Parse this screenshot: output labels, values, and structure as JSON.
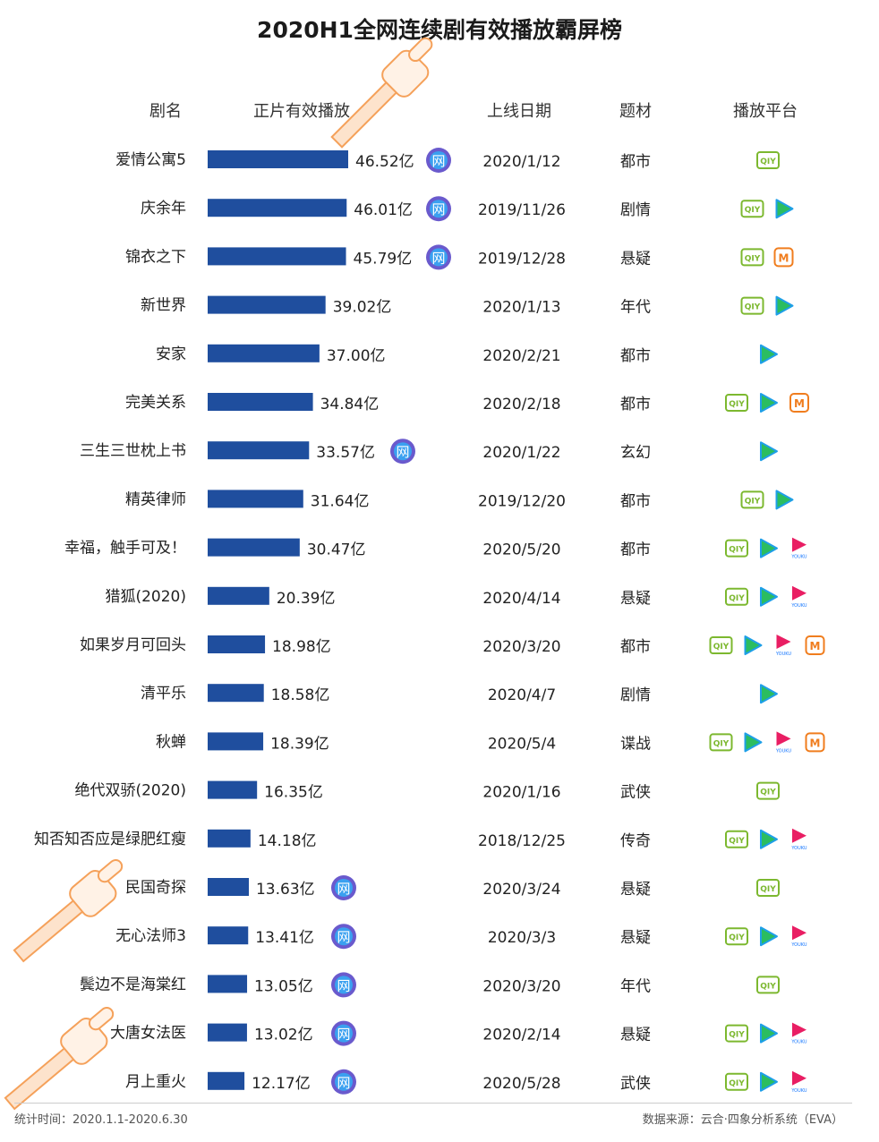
{
  "title": "2020H1全网连续剧有效播放霸屏榜",
  "headers": {
    "name": "剧名",
    "views": "正片有效播放",
    "date": "上线日期",
    "genre": "题材",
    "platform": "播放平台"
  },
  "footer": {
    "left": "统计时间：2020.1.1-2020.6.30",
    "right": "数据来源：云合·四象分析系统（EVA）"
  },
  "colors": {
    "bar": "#1f4e9e",
    "net_badge": "#6a5acd",
    "iqiyi": "#7cb82f",
    "tencent_green": "#2bbd60",
    "tencent_blue": "#1e9fe8",
    "mango": "#f07d1e",
    "youku_pink": "#e91e63",
    "youku_blue": "#1677ff",
    "thumb": "#f5a15a"
  },
  "chart_data": {
    "type": "bar",
    "orientation": "horizontal",
    "unit": "亿",
    "categories": [
      "爱情公寓5",
      "庆余年",
      "锦衣之下",
      "新世界",
      "安家",
      "完美关系",
      "三生三世枕上书",
      "精英律师",
      "幸福，触手可及！",
      "猎狐(2020)",
      "如果岁月可回头",
      "清平乐",
      "秋蝉",
      "绝代双骄(2020)",
      "知否知否应是绿肥红瘦",
      "民国奇探",
      "无心法师3",
      "鬓边不是海棠红",
      "大唐女法医",
      "月上重火"
    ],
    "values": [
      46.52,
      46.01,
      45.79,
      39.02,
      37.0,
      34.84,
      33.57,
      31.64,
      30.47,
      20.39,
      18.98,
      18.58,
      18.39,
      16.35,
      14.18,
      13.63,
      13.41,
      13.05,
      13.02,
      12.17
    ],
    "value_labels": [
      "46.52亿",
      "46.01亿",
      "45.79亿",
      "39.02亿",
      "37.00亿",
      "34.84亿",
      "33.57亿",
      "31.64亿",
      "30.47亿",
      "20.39亿",
      "18.98亿",
      "18.58亿",
      "18.39亿",
      "16.35亿",
      "14.18亿",
      "13.63亿",
      "13.41亿",
      "13.05亿",
      "13.02亿",
      "12.17亿"
    ],
    "net_badge_label": "网",
    "net_drama": [
      true,
      true,
      true,
      false,
      false,
      false,
      true,
      false,
      false,
      false,
      false,
      false,
      false,
      false,
      false,
      true,
      true,
      true,
      true,
      true
    ],
    "dates": [
      "2020/1/12",
      "2019/11/26",
      "2019/12/28",
      "2020/1/13",
      "2020/2/21",
      "2020/2/18",
      "2020/1/22",
      "2019/12/20",
      "2020/5/20",
      "2020/4/14",
      "2020/3/20",
      "2020/4/7",
      "2020/5/4",
      "2020/1/16",
      "2018/12/25",
      "2020/3/24",
      "2020/3/3",
      "2020/3/20",
      "2020/2/14",
      "2020/5/28"
    ],
    "genres": [
      "都市",
      "剧情",
      "悬疑",
      "年代",
      "都市",
      "都市",
      "玄幻",
      "都市",
      "都市",
      "悬疑",
      "都市",
      "剧情",
      "谍战",
      "武侠",
      "传奇",
      "悬疑",
      "悬疑",
      "年代",
      "悬疑",
      "武侠"
    ],
    "platforms": [
      [
        "iqiyi"
      ],
      [
        "iqiyi",
        "tencent"
      ],
      [
        "iqiyi",
        "mango"
      ],
      [
        "iqiyi",
        "tencent"
      ],
      [
        "tencent"
      ],
      [
        "iqiyi",
        "tencent",
        "mango"
      ],
      [
        "tencent"
      ],
      [
        "iqiyi",
        "tencent"
      ],
      [
        "iqiyi",
        "tencent",
        "youku"
      ],
      [
        "iqiyi",
        "tencent",
        "youku"
      ],
      [
        "iqiyi",
        "tencent",
        "youku",
        "mango"
      ],
      [
        "tencent"
      ],
      [
        "iqiyi",
        "tencent",
        "youku",
        "mango"
      ],
      [
        "iqiyi"
      ],
      [
        "iqiyi",
        "tencent",
        "youku"
      ],
      [
        "iqiyi"
      ],
      [
        "iqiyi",
        "tencent",
        "youku"
      ],
      [
        "iqiyi"
      ],
      [
        "iqiyi",
        "tencent",
        "youku"
      ],
      [
        "iqiyi",
        "tencent",
        "youku"
      ]
    ],
    "platform_icon_text": {
      "iqiyi": "QIY",
      "mango": "M",
      "youku": "YOUKU"
    }
  }
}
